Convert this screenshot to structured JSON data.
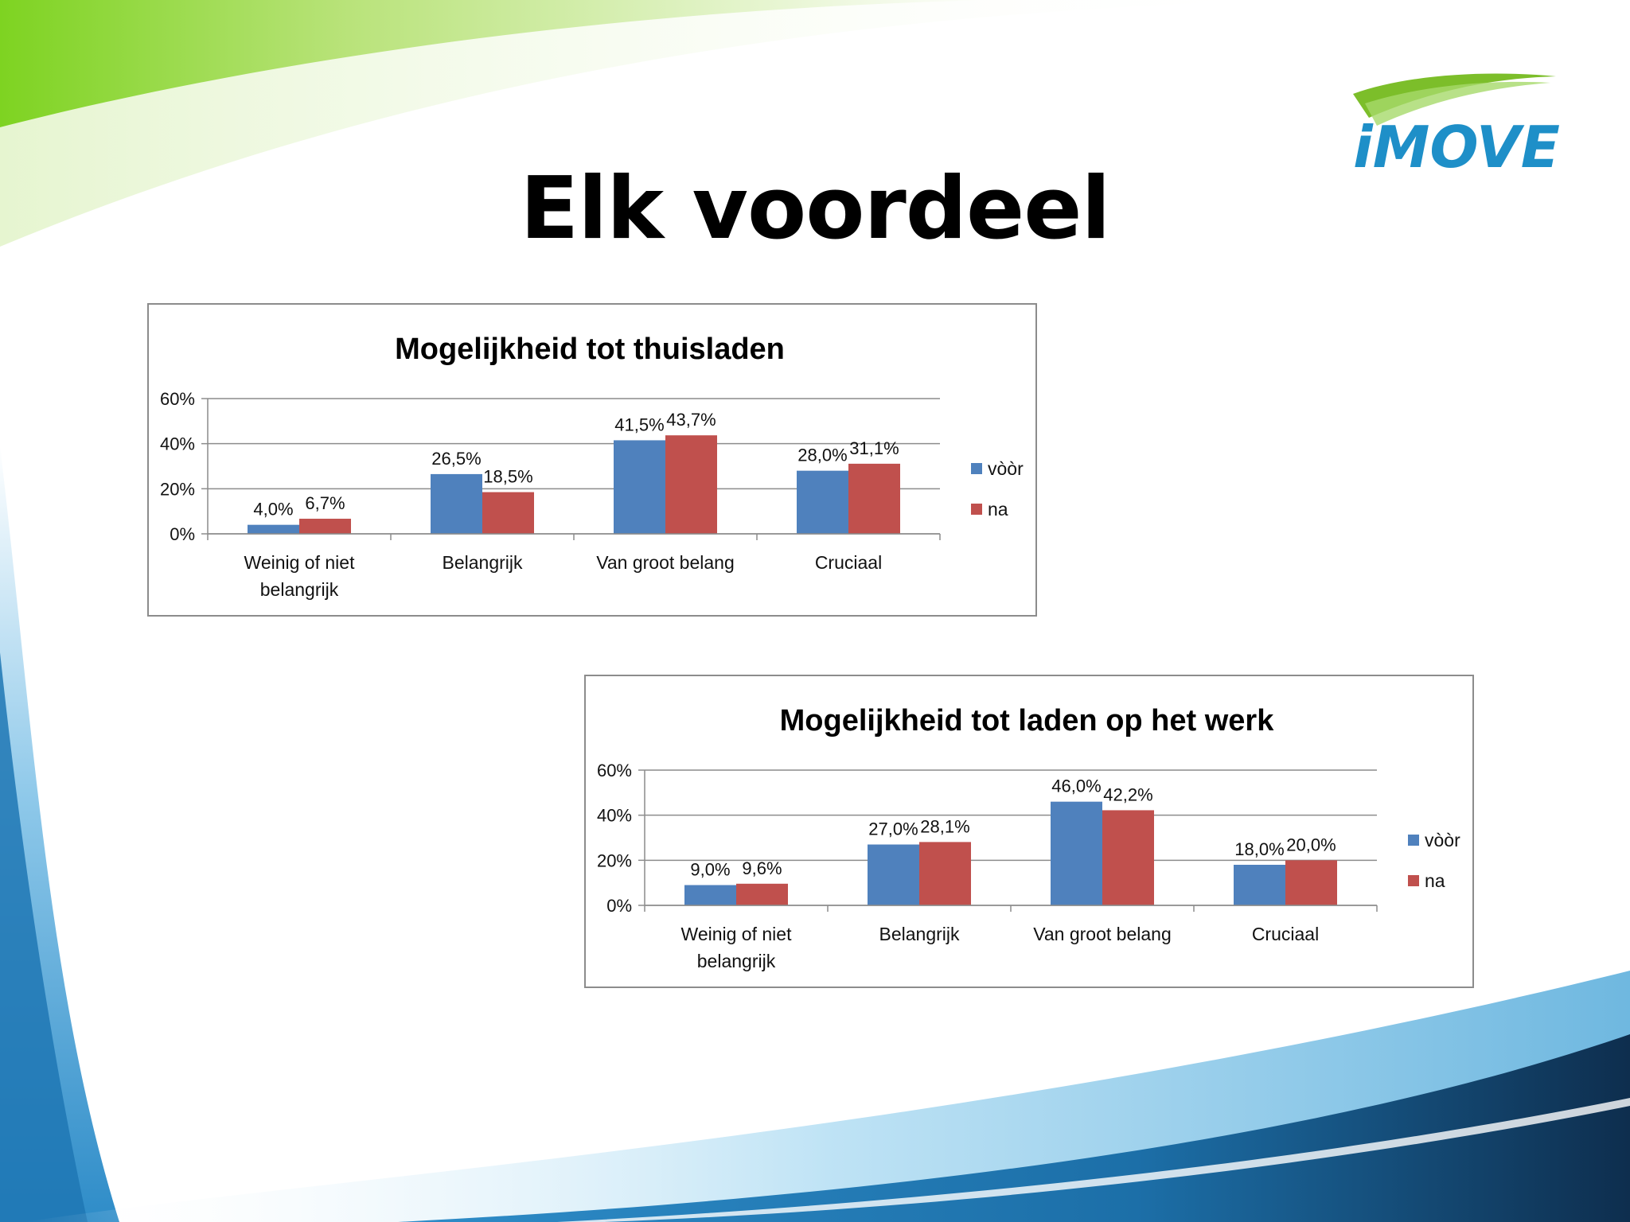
{
  "slide": {
    "title": "Elk voordeel",
    "logo_text": "iMOVE"
  },
  "colors": {
    "series_voor": "#4F81BD",
    "series_na": "#C0504D",
    "logo_blue": "#1E8FC8",
    "logo_green": "#7CBE2A"
  },
  "chart_data": [
    {
      "type": "bar",
      "title": "Mogelijkheid tot thuisladen",
      "categories": [
        [
          "Weinig of niet",
          "belangrijk"
        ],
        [
          "Belangrijk"
        ],
        [
          "Van groot belang"
        ],
        [
          "Cruciaal"
        ]
      ],
      "series": [
        {
          "name": "vòòr",
          "values": [
            4.0,
            26.5,
            41.5,
            28.0
          ],
          "labels": [
            "4,0%",
            "26,5%",
            "41,5%",
            "28,0%"
          ]
        },
        {
          "name": "na",
          "values": [
            6.7,
            18.5,
            43.7,
            31.1
          ],
          "labels": [
            "6,7%",
            "18,5%",
            "43,7%",
            "31,1%"
          ]
        }
      ],
      "yticks": [
        "0%",
        "20%",
        "40%",
        "60%"
      ],
      "ylim": [
        0,
        60
      ],
      "grid": true,
      "legend": "right"
    },
    {
      "type": "bar",
      "title": "Mogelijkheid tot laden op het werk",
      "categories": [
        [
          "Weinig of niet",
          "belangrijk"
        ],
        [
          "Belangrijk"
        ],
        [
          "Van groot belang"
        ],
        [
          "Cruciaal"
        ]
      ],
      "series": [
        {
          "name": "vòòr",
          "values": [
            9.0,
            27.0,
            46.0,
            18.0
          ],
          "labels": [
            "9,0%",
            "27,0%",
            "46,0%",
            "18,0%"
          ]
        },
        {
          "name": "na",
          "values": [
            9.6,
            28.1,
            42.2,
            20.0
          ],
          "labels": [
            "9,6%",
            "28,1%",
            "42,2%",
            "20,0%"
          ]
        }
      ],
      "yticks": [
        "0%",
        "20%",
        "40%",
        "60%"
      ],
      "ylim": [
        0,
        60
      ],
      "grid": true,
      "legend": "right"
    }
  ]
}
